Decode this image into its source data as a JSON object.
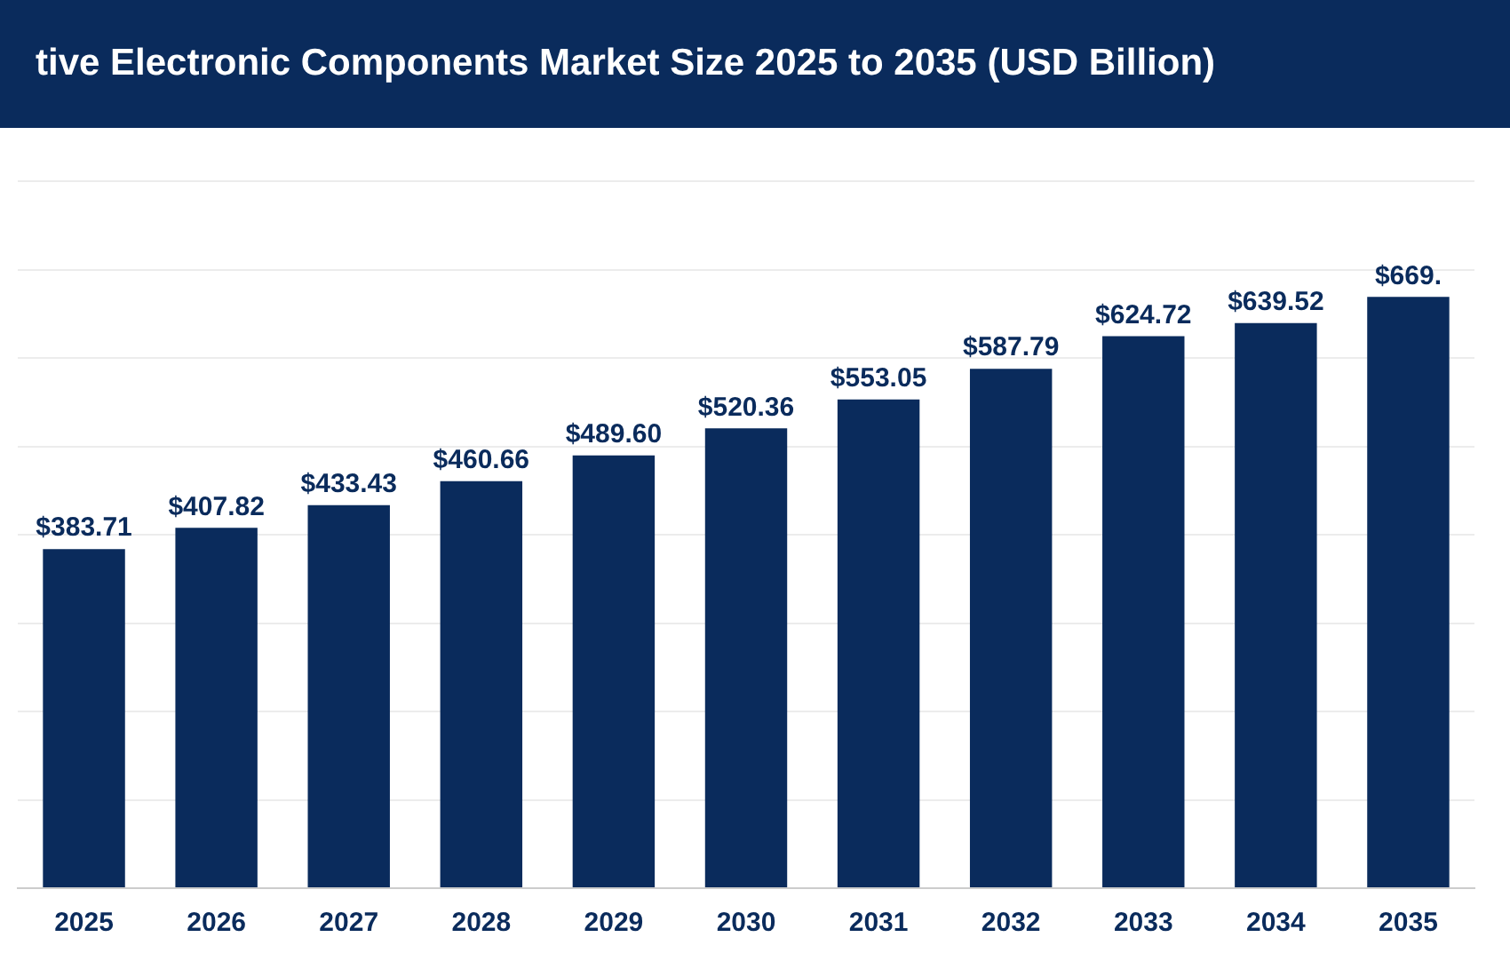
{
  "chart_data": {
    "type": "bar",
    "title": "tive Electronic Components Market Size 2025 to 2035 (USD Billion)",
    "categories": [
      "2025",
      "2026",
      "2027",
      "2028",
      "2029",
      "2030",
      "2031",
      "2032",
      "2033",
      "2034",
      "2035"
    ],
    "values": [
      383.71,
      407.82,
      433.43,
      460.66,
      489.6,
      520.36,
      553.05,
      587.79,
      624.72,
      639.52,
      669
    ],
    "value_labels": [
      "$383.71",
      "$407.82",
      "$433.43",
      "$460.66",
      "$489.60",
      "$520.36",
      "$553.05",
      "$587.79",
      "$624.72",
      "$639.52",
      "$669."
    ],
    "color": "#0a2b5c",
    "ylim": [
      0,
      800
    ],
    "yticks": [
      {
        "value": 0,
        "label": null
      },
      {
        "value": 100,
        "label": null
      },
      {
        "value": 200,
        "label": null
      },
      {
        "value": 300,
        "label": null
      },
      {
        "value": 400,
        "label": null
      },
      {
        "value": 500,
        "label": null
      },
      {
        "value": 600,
        "label": null
      },
      {
        "value": 700,
        "label": null
      },
      {
        "value": 800,
        "label": null
      }
    ],
    "grid": "y",
    "tick_labels": "x"
  }
}
